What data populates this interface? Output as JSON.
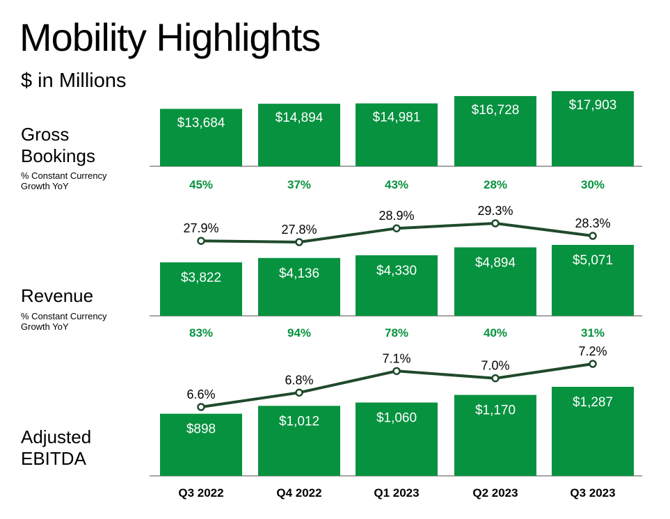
{
  "title": "Mobility Highlights",
  "subtitle": "$ in Millions",
  "colors": {
    "bar": "#07923F",
    "growth_text": "#07923F",
    "line": "#1F4A2C",
    "axis": "#4a4a4a",
    "bar_label": "#ffffff",
    "text": "#000000"
  },
  "rows": {
    "gross_bookings": {
      "label_line1": "Gross",
      "label_line2": "Bookings",
      "note_line1": "% Constant Currency",
      "note_line2": "Growth YoY"
    },
    "revenue": {
      "label": "Revenue",
      "note_line1": "% Constant Currency",
      "note_line2": "Growth YoY"
    },
    "adjusted_ebitda": {
      "label_line1": "Adjusted",
      "label_line2": "EBITDA"
    }
  },
  "chart_data": [
    {
      "type": "bar",
      "name": "Gross Bookings",
      "categories": [
        "Q3 2022",
        "Q4 2022",
        "Q1 2023",
        "Q2 2023",
        "Q3 2023"
      ],
      "values": [
        13684,
        14894,
        14981,
        16728,
        17903
      ],
      "value_labels": [
        "$13,684",
        "$14,894",
        "$14,981",
        "$16,728",
        "$17,903"
      ],
      "growth_labels": [
        "45%",
        "37%",
        "43%",
        "28%",
        "30%"
      ]
    },
    {
      "type": "bar",
      "name": "Revenue",
      "categories": [
        "Q3 2022",
        "Q4 2022",
        "Q1 2023",
        "Q2 2023",
        "Q3 2023"
      ],
      "values": [
        3822,
        4136,
        4330,
        4894,
        5071
      ],
      "value_labels": [
        "$3,822",
        "$4,136",
        "$4,330",
        "$4,894",
        "$5,071"
      ],
      "growth_labels": [
        "83%",
        "94%",
        "78%",
        "40%",
        "31%"
      ],
      "line_values": [
        27.9,
        27.8,
        28.9,
        29.3,
        28.3
      ],
      "line_labels": [
        "27.9%",
        "27.8%",
        "28.9%",
        "29.3%",
        "28.3%"
      ]
    },
    {
      "type": "bar",
      "name": "Adjusted EBITDA",
      "categories": [
        "Q3 2022",
        "Q4 2022",
        "Q1 2023",
        "Q2 2023",
        "Q3 2023"
      ],
      "values": [
        898,
        1012,
        1060,
        1170,
        1287
      ],
      "value_labels": [
        "$898",
        "$1,012",
        "$1,060",
        "$1,170",
        "$1,287"
      ],
      "line_values": [
        6.6,
        6.8,
        7.1,
        7.0,
        7.2
      ],
      "line_labels": [
        "6.6%",
        "6.8%",
        "7.1%",
        "7.0%",
        "7.2%"
      ]
    }
  ]
}
